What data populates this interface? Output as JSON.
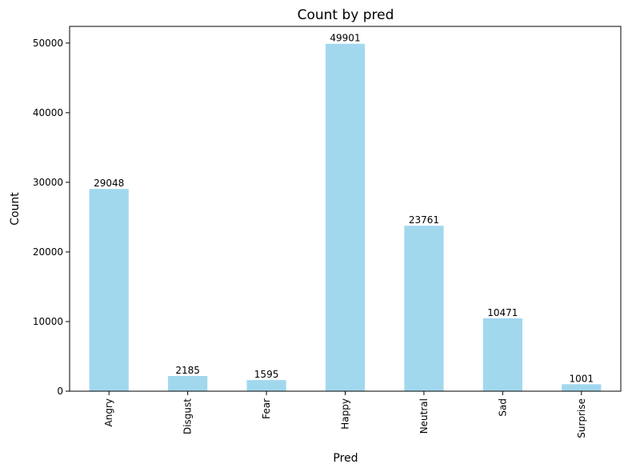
{
  "chart_data": {
    "type": "bar",
    "title": "Count by pred",
    "xlabel": "Pred",
    "ylabel": "Count",
    "categories": [
      "Angry",
      "Disgust",
      "Fear",
      "Happy",
      "Neutral",
      "Sad",
      "Surprise"
    ],
    "values": [
      29048,
      2185,
      1595,
      49901,
      23761,
      10471,
      1001
    ],
    "data_labels": [
      "29048",
      "2185",
      "1595",
      "49901",
      "23761",
      "10471",
      "1001"
    ],
    "ylim": [
      0,
      52395
    ],
    "yticks": [
      0,
      10000,
      20000,
      30000,
      40000,
      50000
    ],
    "ytick_labels": [
      "0",
      "10000",
      "20000",
      "30000",
      "40000",
      "50000"
    ],
    "grid": false,
    "legend": "none",
    "bar_color": "#a1d8ee"
  }
}
